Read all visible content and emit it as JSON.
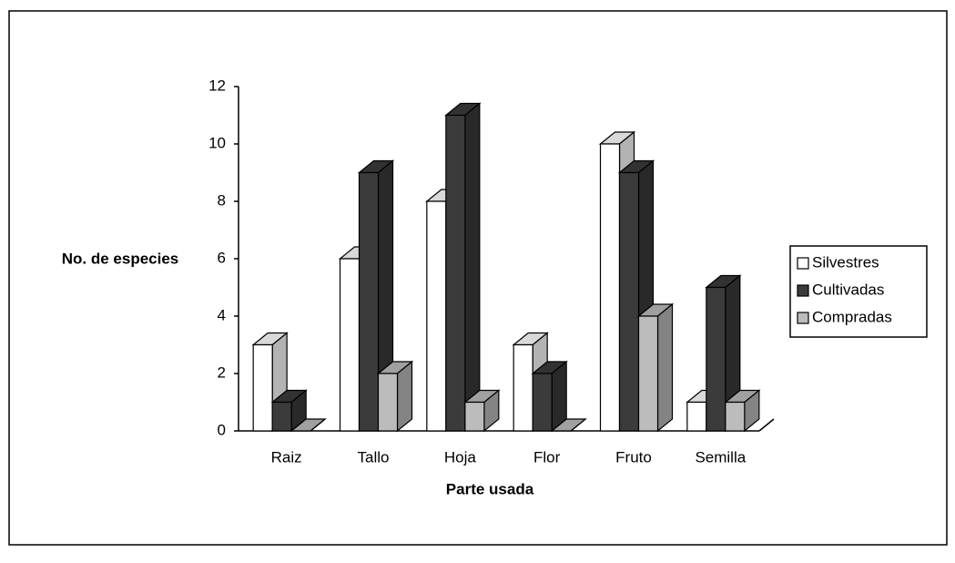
{
  "chart_data": {
    "type": "bar3d",
    "y_axis_label": "No. de especies",
    "x_axis_label": "Parte usada",
    "categories": [
      "Raiz",
      "Tallo",
      "Hoja",
      "Flor",
      "Fruto",
      "Semilla"
    ],
    "series": [
      {
        "name": "Silvestres",
        "color": "#ffffff",
        "values": [
          3,
          6,
          8,
          3,
          10,
          1
        ]
      },
      {
        "name": "Cultivadas",
        "color": "#3b3b3b",
        "values": [
          1,
          9,
          11,
          2,
          9,
          5
        ]
      },
      {
        "name": "Compradas",
        "color": "#bcbcbc",
        "values": [
          0,
          2,
          1,
          0,
          4,
          1
        ]
      }
    ],
    "ylim": [
      0,
      12
    ],
    "yticks": [
      0,
      2,
      4,
      6,
      8,
      10,
      12
    ],
    "legend": "right"
  }
}
